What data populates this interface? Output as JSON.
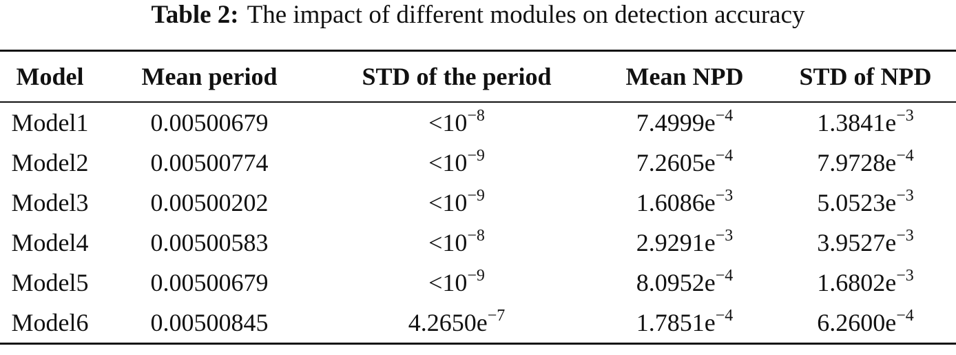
{
  "caption": {
    "label": "Table 2:",
    "text": "The impact of different modules on detection accuracy"
  },
  "table": {
    "headers": [
      "Model",
      "Mean period",
      "STD of the period",
      "Mean NPD",
      "STD of NPD"
    ],
    "rows": [
      {
        "model": "Model1",
        "mean_period": "0.00500679",
        "std_period": {
          "base": "<10",
          "exp": "−8"
        },
        "mean_npd": {
          "base": "7.4999e",
          "exp": "−4"
        },
        "std_npd": {
          "base": "1.3841e",
          "exp": "−3"
        }
      },
      {
        "model": "Model2",
        "mean_period": "0.00500774",
        "std_period": {
          "base": "<10",
          "exp": "−9"
        },
        "mean_npd": {
          "base": "7.2605e",
          "exp": "−4"
        },
        "std_npd": {
          "base": "7.9728e",
          "exp": "−4"
        }
      },
      {
        "model": "Model3",
        "mean_period": "0.00500202",
        "std_period": {
          "base": "<10",
          "exp": "−9"
        },
        "mean_npd": {
          "base": "1.6086e",
          "exp": "−3"
        },
        "std_npd": {
          "base": "5.0523e",
          "exp": "−3"
        }
      },
      {
        "model": "Model4",
        "mean_period": "0.00500583",
        "std_period": {
          "base": "<10",
          "exp": "−8"
        },
        "mean_npd": {
          "base": "2.9291e",
          "exp": "−3"
        },
        "std_npd": {
          "base": "3.9527e",
          "exp": "−3"
        }
      },
      {
        "model": "Model5",
        "mean_period": "0.00500679",
        "std_period": {
          "base": "<10",
          "exp": "−9"
        },
        "mean_npd": {
          "base": "8.0952e",
          "exp": "−4"
        },
        "std_npd": {
          "base": "1.6802e",
          "exp": "−3"
        }
      },
      {
        "model": "Model6",
        "mean_period": "0.00500845",
        "std_period": {
          "base": "4.2650e",
          "exp": "−7"
        },
        "mean_npd": {
          "base": "1.7851e",
          "exp": "−4"
        },
        "std_npd": {
          "base": "6.2600e",
          "exp": "−4"
        }
      }
    ]
  }
}
